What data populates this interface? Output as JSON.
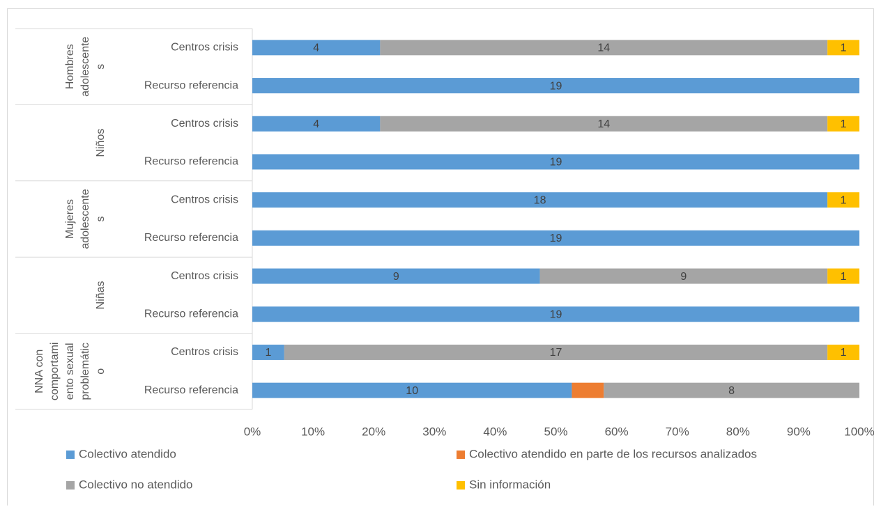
{
  "chart_data": {
    "type": "stacked-bar-100",
    "orientation": "horizontal",
    "groups": [
      {
        "lines": [
          "Hombres",
          "adolescente",
          "s"
        ]
      },
      {
        "lines": [
          "Niños"
        ]
      },
      {
        "lines": [
          "Mujeres",
          "adolescente",
          "s"
        ]
      },
      {
        "lines": [
          "Niñas"
        ]
      },
      {
        "lines": [
          "NNA  con",
          "comportami",
          "ento sexual",
          "problemátic",
          "o"
        ]
      }
    ],
    "categories": [
      "Centros crisis",
      "Recurso referencia",
      "Centros crisis",
      "Recurso referencia",
      "Centros crisis",
      "Recurso referencia",
      "Centros crisis",
      "Recurso referencia",
      "Centros crisis",
      "Recurso referencia"
    ],
    "series": [
      {
        "name": "Colectivo atendido",
        "color": "#5b9bd5",
        "values": [
          4,
          19,
          4,
          19,
          18,
          19,
          9,
          19,
          1,
          10
        ]
      },
      {
        "name": "Colectivo atendido en parte de los recursos analizados",
        "color": "#ed7d31",
        "values": [
          0,
          0,
          0,
          0,
          0,
          0,
          0,
          0,
          0,
          1
        ],
        "data_labels": false
      },
      {
        "name": "Colectivo no atendido",
        "color": "#a5a5a5",
        "values": [
          14,
          0,
          14,
          0,
          0,
          0,
          9,
          0,
          17,
          8
        ]
      },
      {
        "name": "Sin información",
        "color": "#ffc000",
        "values": [
          1,
          0,
          1,
          0,
          1,
          0,
          1,
          0,
          1,
          0
        ]
      }
    ],
    "xlim": [
      0,
      100
    ],
    "xticks": [
      {
        "value": 0,
        "label": "0%"
      },
      {
        "value": 10,
        "label": "10%"
      },
      {
        "value": 20,
        "label": "20%"
      },
      {
        "value": 30,
        "label": "30%"
      },
      {
        "value": 40,
        "label": "40%"
      },
      {
        "value": 50,
        "label": "50%"
      },
      {
        "value": 60,
        "label": "60%"
      },
      {
        "value": 70,
        "label": "70%"
      },
      {
        "value": 80,
        "label": "80%"
      },
      {
        "value": 90,
        "label": "90%"
      },
      {
        "value": 100,
        "label": "100%"
      }
    ],
    "grid": false,
    "legend": "bottom"
  }
}
